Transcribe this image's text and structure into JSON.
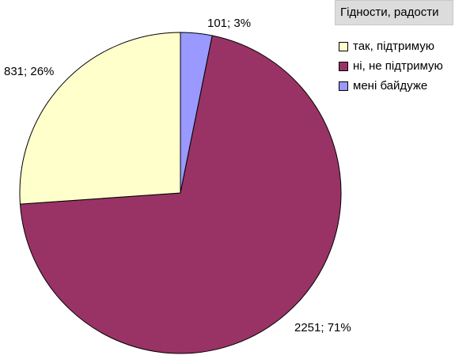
{
  "chart_data": {
    "type": "pie",
    "title": "Гідности, радости",
    "legend_position": "right",
    "series": [
      {
        "name": "так, підтримую",
        "value": 831,
        "percent": 26,
        "label": "831; 26%",
        "color": "#ffffcc"
      },
      {
        "name": "ні, не підтримую",
        "value": 2251,
        "percent": 71,
        "label": "2251; 71%",
        "color": "#993366"
      },
      {
        "name": "мені байдуже",
        "value": 101,
        "percent": 3,
        "label": "101; 3%",
        "color": "#9999ff"
      }
    ]
  }
}
